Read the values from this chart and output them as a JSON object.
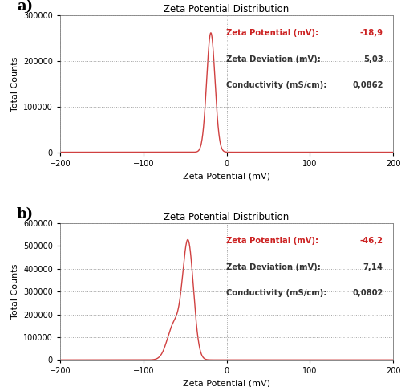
{
  "title": "Zeta Potential Distribution",
  "xlabel": "Zeta Potential (mV)",
  "ylabel": "Total Counts",
  "panel_a": {
    "mean": -18.9,
    "std": 5.0,
    "peak": 262000,
    "ylim": [
      0,
      300000
    ],
    "yticks": [
      0,
      100000,
      200000,
      300000
    ],
    "xlim": [
      -200,
      200
    ],
    "xticks": [
      -200,
      -100,
      0,
      100,
      200
    ],
    "zeta_potential": "-18,9",
    "zeta_deviation": "5,03",
    "conductivity": "0,0862",
    "label": "a)"
  },
  "panel_b": {
    "mean": -46.2,
    "std": 6.5,
    "peak": 510000,
    "ylim": [
      0,
      600000
    ],
    "yticks": [
      0,
      100000,
      200000,
      300000,
      400000,
      500000,
      600000
    ],
    "xlim": [
      -200,
      200
    ],
    "xticks": [
      -200,
      -100,
      0,
      100,
      200
    ],
    "zeta_potential": "-46,2",
    "zeta_deviation": "7,14",
    "conductivity": "0,0802",
    "label": "b)",
    "shoulder_mean": -63.0,
    "shoulder_std": 8.0,
    "shoulder_peak": 155000
  },
  "line_color": "#d04040",
  "grid_color": "#999999",
  "background_color": "#ffffff",
  "text_color_red": "#cc2222",
  "text_color_black": "#333333"
}
